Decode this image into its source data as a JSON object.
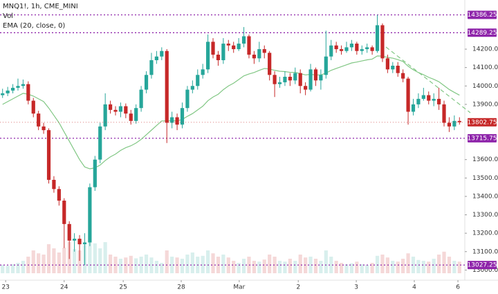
{
  "chart_data": {
    "type": "candlestick",
    "title": "MNQ1!, 1h, CME_MINI",
    "legend": [
      "Vol",
      "EMA (20, close, 0)"
    ],
    "x": [
      0,
      1,
      2,
      3,
      4,
      5,
      6,
      7,
      8,
      9,
      10,
      11,
      12,
      13,
      14,
      15,
      16,
      17,
      18,
      19,
      20,
      21,
      22,
      23,
      24,
      25,
      26,
      27,
      28,
      29,
      30,
      31,
      32,
      33,
      34,
      35,
      36,
      37,
      38,
      39,
      40,
      41,
      42,
      43,
      44,
      45,
      46,
      47,
      48,
      49,
      50,
      51,
      52,
      53,
      54,
      55,
      56,
      57,
      58,
      59,
      60,
      61,
      62,
      63,
      64,
      65,
      66,
      67,
      68,
      69,
      70,
      71,
      72,
      73,
      74,
      75,
      76,
      77,
      78,
      79,
      80,
      81,
      82,
      83,
      84,
      85,
      86,
      87,
      88,
      89
    ],
    "open": [
      13950,
      13960,
      13975,
      13990,
      14000,
      14010,
      13920,
      13850,
      13780,
      13760,
      13490,
      13440,
      13377,
      13250,
      13160,
      13170,
      13140,
      13150,
      13450,
      13600,
      13780,
      13900,
      13870,
      13860,
      13890,
      13850,
      13810,
      13880,
      13980,
      14060,
      14140,
      14160,
      14190,
      13800,
      13830,
      13790,
      13880,
      13980,
      14000,
      14060,
      14090,
      14240,
      14170,
      14140,
      14230,
      14220,
      14200,
      14230,
      14270,
      14170,
      14150,
      14200,
      14180,
      14060,
      14010,
      14020,
      14050,
      14030,
      14070,
      14000,
      13980,
      14090,
      14030,
      14060,
      14160,
      14220,
      14200,
      14190,
      14210,
      14230,
      14190,
      14200,
      14210,
      14190,
      14330,
      14150,
      14090,
      14110,
      14070,
      14040,
      13860,
      13900,
      13930,
      13950,
      13920,
      13930,
      13900,
      13800,
      13780,
      13810
    ],
    "high": [
      13985,
      13995,
      14010,
      14040,
      14035,
      14025,
      13935,
      13865,
      13800,
      13770,
      13510,
      13455,
      13390,
      13265,
      13200,
      13190,
      13200,
      13470,
      13620,
      13800,
      13960,
      13920,
      13890,
      13910,
      13905,
      13870,
      13900,
      14000,
      14080,
      14180,
      14190,
      14210,
      14200,
      13860,
      13850,
      13910,
      14000,
      14030,
      14090,
      14120,
      14280,
      14260,
      14190,
      14260,
      14250,
      14240,
      14260,
      14320,
      14280,
      14190,
      14240,
      14220,
      14190,
      14080,
      14050,
      14080,
      14070,
      14100,
      14090,
      14020,
      14120,
      14100,
      14090,
      14300,
      14250,
      14240,
      14220,
      14240,
      14250,
      14240,
      14220,
      14230,
      14220,
      14386.25,
      14340,
      14170,
      14130,
      14130,
      14090,
      14050,
      13930,
      13960,
      13990,
      13970,
      13960,
      13990,
      13920,
      13830,
      13840,
      13830
    ],
    "low": [
      13935,
      13945,
      13960,
      13975,
      13985,
      13900,
      13830,
      13760,
      13740,
      13470,
      13420,
      13350,
      13120,
      13060,
      13100,
      13050,
      13027,
      13130,
      13430,
      13580,
      13760,
      13850,
      13840,
      13830,
      13825,
      13790,
      13795,
      13860,
      13960,
      14040,
      14120,
      14140,
      13690,
      13770,
      13760,
      13770,
      13860,
      13960,
      13980,
      14040,
      14070,
      14150,
      14110,
      14120,
      14190,
      14180,
      14190,
      14210,
      14150,
      14120,
      14130,
      14150,
      14030,
      13940,
      13990,
      14000,
      14000,
      14010,
      13960,
      13950,
      13970,
      14000,
      13980,
      14040,
      14140,
      14180,
      14170,
      14180,
      14190,
      14170,
      14170,
      14180,
      14170,
      14180,
      14130,
      14070,
      14070,
      14050,
      14020,
      13790,
      13840,
      13880,
      13920,
      13900,
      13890,
      13870,
      13780,
      13750,
      13760,
      13790
    ],
    "close": [
      13960,
      13975,
      13990,
      14000,
      14010,
      13920,
      13850,
      13780,
      13760,
      13490,
      13440,
      13377,
      13250,
      13160,
      13170,
      13140,
      13150,
      13450,
      13600,
      13780,
      13900,
      13870,
      13860,
      13890,
      13850,
      13810,
      13880,
      13980,
      14060,
      14140,
      14160,
      14190,
      13800,
      13830,
      13790,
      13880,
      13980,
      14000,
      14060,
      14090,
      14240,
      14170,
      14140,
      14230,
      14220,
      14200,
      14230,
      14270,
      14170,
      14150,
      14200,
      14180,
      14060,
      14010,
      14020,
      14050,
      14030,
      14070,
      14000,
      13980,
      14090,
      14030,
      14060,
      14160,
      14220,
      14200,
      14190,
      14210,
      14230,
      14190,
      14200,
      14210,
      14190,
      14330,
      14150,
      14090,
      14110,
      14070,
      14040,
      13860,
      13900,
      13930,
      13950,
      13920,
      13930,
      13900,
      13800,
      13780,
      13810,
      13802.75
    ],
    "volume": [
      20,
      18,
      22,
      25,
      30,
      40,
      55,
      48,
      45,
      70,
      60,
      50,
      62,
      75,
      58,
      55,
      68,
      80,
      72,
      60,
      75,
      45,
      40,
      35,
      38,
      42,
      36,
      40,
      45,
      38,
      30,
      25,
      55,
      40,
      38,
      35,
      45,
      50,
      40,
      42,
      55,
      48,
      40,
      45,
      38,
      30,
      25,
      35,
      40,
      30,
      28,
      33,
      45,
      40,
      30,
      28,
      35,
      30,
      45,
      38,
      40,
      35,
      30,
      55,
      40,
      30,
      25,
      22,
      24,
      28,
      22,
      20,
      25,
      42,
      45,
      38,
      30,
      28,
      35,
      48,
      40,
      32,
      30,
      28,
      35,
      45,
      52,
      40,
      30,
      28
    ],
    "ema": [
      13900,
      13915,
      13930,
      13945,
      13960,
      13955,
      13945,
      13930,
      13915,
      13880,
      13840,
      13800,
      13750,
      13700,
      13650,
      13600,
      13560,
      13550,
      13555,
      13570,
      13595,
      13615,
      13630,
      13650,
      13665,
      13675,
      13690,
      13710,
      13735,
      13760,
      13785,
      13810,
      13810,
      13812,
      13810,
      13818,
      13835,
      13850,
      13870,
      13890,
      13920,
      13940,
      13955,
      13980,
      14000,
      14015,
      14035,
      14055,
      14065,
      14073,
      14085,
      14095,
      14092,
      14085,
      14080,
      14078,
      14074,
      14074,
      14067,
      14060,
      14063,
      14060,
      14060,
      14070,
      14085,
      14095,
      14105,
      14115,
      14125,
      14130,
      14136,
      14142,
      14146,
      14163,
      14162,
      14155,
      14151,
      14143,
      14133,
      14107,
      14088,
      14073,
      14061,
      14047,
      14036,
      14023,
      14002,
      13981,
      13965,
      13950
    ],
    "xlim": [
      -0.5,
      89.5
    ],
    "xticks": [
      {
        "value": 0.6,
        "label": "23"
      },
      {
        "value": 12,
        "label": "24"
      },
      {
        "value": 23.5,
        "label": "25"
      },
      {
        "value": 34.8,
        "label": "28"
      },
      {
        "value": 46.1,
        "label": "Mar"
      },
      {
        "value": 57.6,
        "label": "2"
      },
      {
        "value": 68.9,
        "label": "3"
      },
      {
        "value": 80.2,
        "label": "4"
      },
      {
        "value": 88.7,
        "label": "6"
      }
    ],
    "ylim": [
      12945,
      14467
    ],
    "yticks": [
      {
        "value": 14200,
        "label": "14200.00"
      },
      {
        "value": 14100,
        "label": "14100.00"
      },
      {
        "value": 14000,
        "label": "14000.00"
      },
      {
        "value": 13900,
        "label": "13900.00"
      },
      {
        "value": 13600,
        "label": "13600.00"
      },
      {
        "value": 13500,
        "label": "13500.00"
      },
      {
        "value": 13400,
        "label": "13400.00"
      },
      {
        "value": 13300,
        "label": "13300.00"
      },
      {
        "value": 13200,
        "label": "13200.00"
      },
      {
        "value": 13100,
        "label": "13100.00"
      },
      {
        "value": 13000,
        "label": "13000.00"
      }
    ],
    "levels": [
      14386.25,
      14289.25,
      13715.75,
      13027.25
    ],
    "last_price": 13802.75,
    "up_color": "#26a69a",
    "down_color": "#c62828",
    "ema_color": "#81c784",
    "level_color": "#8e24aa"
  }
}
